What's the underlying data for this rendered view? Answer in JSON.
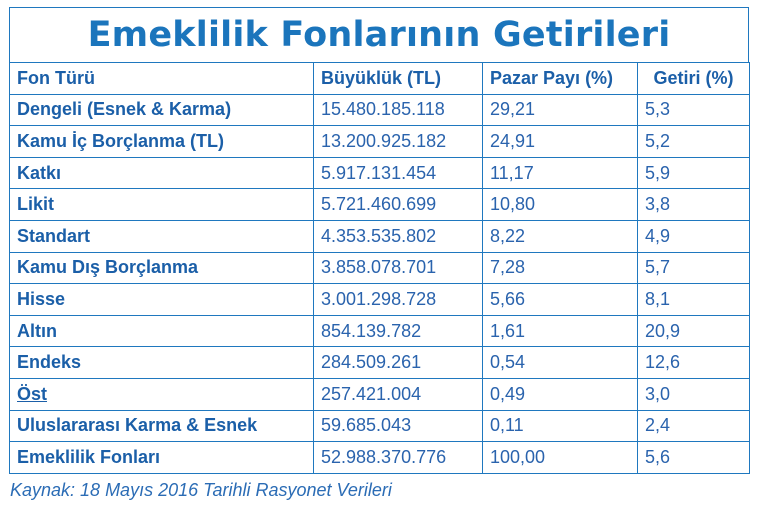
{
  "title": "Emeklilik Fonlarının Getirileri",
  "table": {
    "headers": [
      "Fon Türü",
      "Büyüklük (TL)",
      "Pazar Payı (%)",
      "Getiri (%)"
    ],
    "rows": [
      [
        "Dengeli (Esnek & Karma)",
        "15.480.185.118",
        "29,21",
        "5,3"
      ],
      [
        "Kamu İç Borçlanma (TL)",
        "13.200.925.182",
        "24,91",
        "5,2"
      ],
      [
        "Katkı",
        "5.917.131.454",
        "11,17",
        "5,9"
      ],
      [
        "Likit",
        "5.721.460.699",
        "10,80",
        "3,8"
      ],
      [
        "Standart",
        "4.353.535.802",
        "8,22",
        "4,9"
      ],
      [
        "Kamu Dış Borçlanma",
        "3.858.078.701",
        "7,28",
        "5,7"
      ],
      [
        "Hisse",
        "3.001.298.728",
        "5,66",
        "8,1"
      ],
      [
        "Altın",
        "854.139.782",
        "1,61",
        "20,9"
      ],
      [
        "Endeks",
        "284.509.261",
        "0,54",
        "12,6"
      ],
      [
        "Öst",
        "257.421.004",
        "0,49",
        "3,0"
      ],
      [
        "Uluslararası Karma & Esnek",
        "59.685.043",
        "0,11",
        "2,4"
      ],
      [
        "Emeklilik Fonları",
        "52.988.370.776",
        "100,00",
        "5,6"
      ]
    ]
  },
  "source": "Kaynak: 18 Mayıs 2016 Tarihli Rasyonet Verileri",
  "colors": {
    "accent": "#1b75bc",
    "border": "#1f78bf",
    "text": "#1b5fa8"
  }
}
